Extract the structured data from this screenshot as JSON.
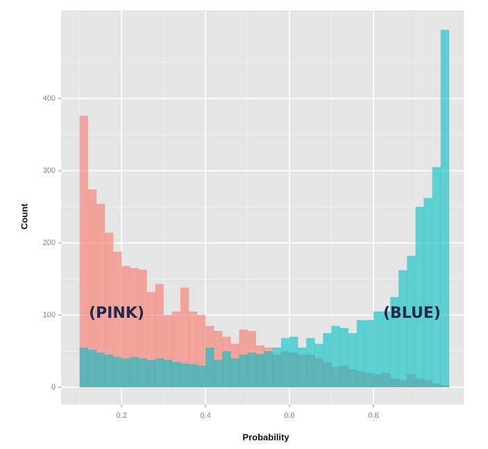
{
  "chart_data": {
    "type": "histogram",
    "bins": [
      0.1,
      0.12,
      0.14,
      0.16,
      0.18,
      0.2,
      0.22,
      0.24,
      0.26,
      0.28,
      0.3,
      0.32,
      0.34,
      0.36,
      0.38,
      0.4,
      0.42,
      0.44,
      0.46,
      0.48,
      0.5,
      0.52,
      0.54,
      0.56,
      0.58,
      0.6,
      0.62,
      0.64,
      0.66,
      0.68,
      0.7,
      0.72,
      0.74,
      0.76,
      0.78,
      0.8,
      0.82,
      0.84,
      0.86,
      0.88,
      0.9,
      0.92,
      0.94,
      0.96,
      0.98
    ],
    "series": [
      {
        "color": "#F8766D",
        "values": [
          376,
          274,
          254,
          214,
          188,
          168,
          165,
          163,
          132,
          143,
          100,
          105,
          138,
          105,
          100,
          85,
          78,
          70,
          60,
          80,
          78,
          58,
          55,
          45,
          50,
          48,
          45,
          45,
          40,
          35,
          28,
          30,
          25,
          22,
          20,
          18,
          20,
          12,
          10,
          18,
          12,
          10,
          5,
          3
        ]
      },
      {
        "color": "#00BFC4",
        "values": [
          55,
          52,
          48,
          45,
          42,
          40,
          42,
          40,
          38,
          40,
          38,
          35,
          33,
          32,
          30,
          55,
          38,
          50,
          40,
          45,
          48,
          46,
          50,
          55,
          68,
          70,
          55,
          68,
          60,
          75,
          85,
          82,
          75,
          93,
          93,
          105,
          105,
          125,
          162,
          182,
          250,
          262,
          305,
          495
        ]
      }
    ],
    "annotations": [
      "(PINK)",
      "(BLUE)"
    ],
    "x_label": "Probability",
    "y_label": "Count",
    "xlim": [
      0.056,
      1.015
    ],
    "ylim": [
      -24,
      522
    ],
    "xticks": [
      0.2,
      0.4,
      0.6,
      0.8
    ],
    "yticks": [
      0,
      100,
      200,
      300,
      400
    ],
    "grid": true,
    "minor_grid": true
  }
}
